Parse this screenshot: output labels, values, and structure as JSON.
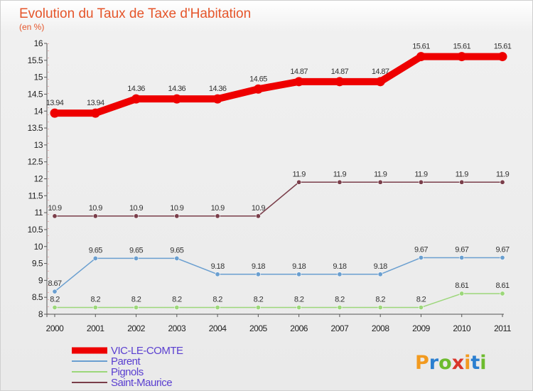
{
  "header": {
    "title": "Evolution du Taux de Taxe d'Habitation",
    "subtitle": "(en %)"
  },
  "logo": {
    "letters": [
      "P",
      "r",
      "o",
      "x",
      "i",
      "t",
      "i"
    ],
    "colors": [
      "#f29a1f",
      "#2b7fd0",
      "#6dbb2e",
      "#d9362b",
      "#f29a1f",
      "#2b7fd0",
      "#6dbb2e"
    ]
  },
  "chart_data": {
    "type": "line",
    "title": "Evolution du Taux de Taxe d'Habitation",
    "ylabel": "(en %)",
    "xlabel": "",
    "ylim": [
      8,
      16
    ],
    "yticks": [
      8,
      8.5,
      9,
      9.5,
      10,
      10.5,
      11,
      11.5,
      12,
      12.5,
      13,
      13.5,
      14,
      14.5,
      15,
      15.5,
      16
    ],
    "ytick_labels": [
      "8",
      "8.5",
      "9",
      "9.5",
      "10",
      "10.5",
      "11",
      "11.5",
      "12",
      "12.5",
      "13",
      "13.5",
      "14",
      "14.5",
      "15",
      "15.5",
      "16"
    ],
    "categories": [
      "2000",
      "2001",
      "2002",
      "2003",
      "2004",
      "2005",
      "2006",
      "2007",
      "2008",
      "2009",
      "2010",
      "2011"
    ],
    "grid": false,
    "legend_position": "bottom-left",
    "series": [
      {
        "name": "VIC-LE-COMTE",
        "color": "#ee0000",
        "values": [
          13.94,
          13.94,
          14.36,
          14.36,
          14.36,
          14.65,
          14.87,
          14.87,
          14.87,
          15.61,
          15.61,
          15.61
        ],
        "labels": [
          "13.94",
          "13.94",
          "14.36",
          "14.36",
          "14.36",
          "14.65",
          "14.87",
          "14.87",
          "14.87",
          "15.61",
          "15.61",
          "15.61"
        ]
      },
      {
        "name": "Parent",
        "color": "#6a9fd0",
        "values": [
          8.67,
          9.65,
          9.65,
          9.65,
          9.18,
          9.18,
          9.18,
          9.18,
          9.18,
          9.67,
          9.67,
          9.67
        ],
        "labels": [
          "8.67",
          "9.65",
          "9.65",
          "9.65",
          "9.18",
          "9.18",
          "9.18",
          "9.18",
          "9.18",
          "9.67",
          "9.67",
          "9.67"
        ]
      },
      {
        "name": "Pignols",
        "color": "#9cd77a",
        "values": [
          8.2,
          8.2,
          8.2,
          8.2,
          8.2,
          8.2,
          8.2,
          8.2,
          8.2,
          8.2,
          8.61,
          8.61
        ],
        "labels": [
          "8.2",
          "8.2",
          "8.2",
          "8.2",
          "8.2",
          "8.2",
          "8.2",
          "8.2",
          "8.2",
          "8.2",
          "8.61",
          "8.61"
        ]
      },
      {
        "name": "Saint-Maurice",
        "color": "#7a3e4a",
        "values": [
          10.9,
          10.9,
          10.9,
          10.9,
          10.9,
          10.9,
          11.9,
          11.9,
          11.9,
          11.9,
          11.9,
          11.9
        ],
        "labels": [
          "10.9",
          "10.9",
          "10.9",
          "10.9",
          "10.9",
          "10.9",
          "11.9",
          "11.9",
          "11.9",
          "11.9",
          "11.9",
          "11.9"
        ]
      }
    ]
  }
}
